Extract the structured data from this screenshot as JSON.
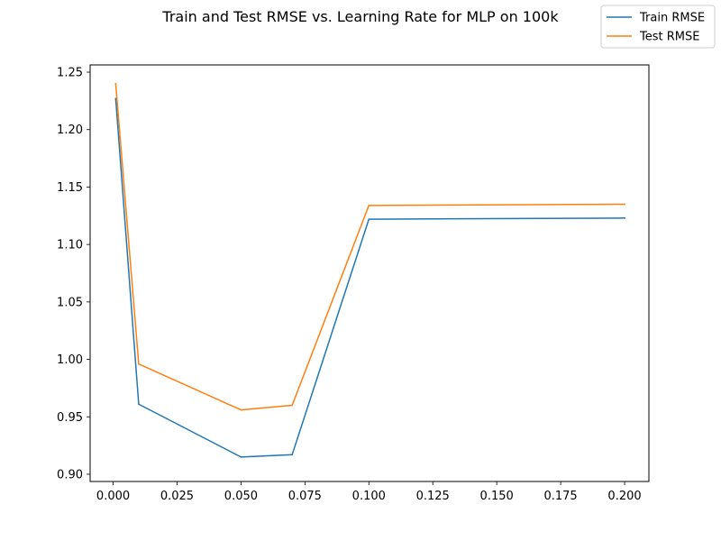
{
  "chart_data": {
    "type": "line",
    "title": "Train and Test RMSE vs. Learning Rate for MLP on 100k",
    "xlabel": "",
    "ylabel": "",
    "x": [
      0.001,
      0.01,
      0.05,
      0.07,
      0.1,
      0.2
    ],
    "series": [
      {
        "name": "Train RMSE",
        "color": "#1f77b4",
        "values": [
          1.227,
          0.961,
          0.915,
          0.917,
          1.122,
          1.123
        ]
      },
      {
        "name": "Test RMSE",
        "color": "#ff7f0e",
        "values": [
          1.24,
          0.996,
          0.956,
          0.96,
          1.134,
          1.135
        ]
      }
    ],
    "xlim": [
      -0.009,
      0.2095
    ],
    "ylim": [
      0.8937,
      1.2563
    ],
    "xticks": [
      0.0,
      0.025,
      0.05,
      0.075,
      0.1,
      0.125,
      0.15,
      0.175,
      0.2
    ],
    "xtick_labels": [
      "0.000",
      "0.025",
      "0.050",
      "0.075",
      "0.100",
      "0.125",
      "0.150",
      "0.175",
      "0.200"
    ],
    "yticks": [
      0.9,
      0.95,
      1.0,
      1.05,
      1.1,
      1.15,
      1.2,
      1.25
    ],
    "ytick_labels": [
      "0.90",
      "0.95",
      "1.00",
      "1.05",
      "1.10",
      "1.15",
      "1.20",
      "1.25"
    ],
    "grid": false,
    "legend_position": "top-right"
  }
}
